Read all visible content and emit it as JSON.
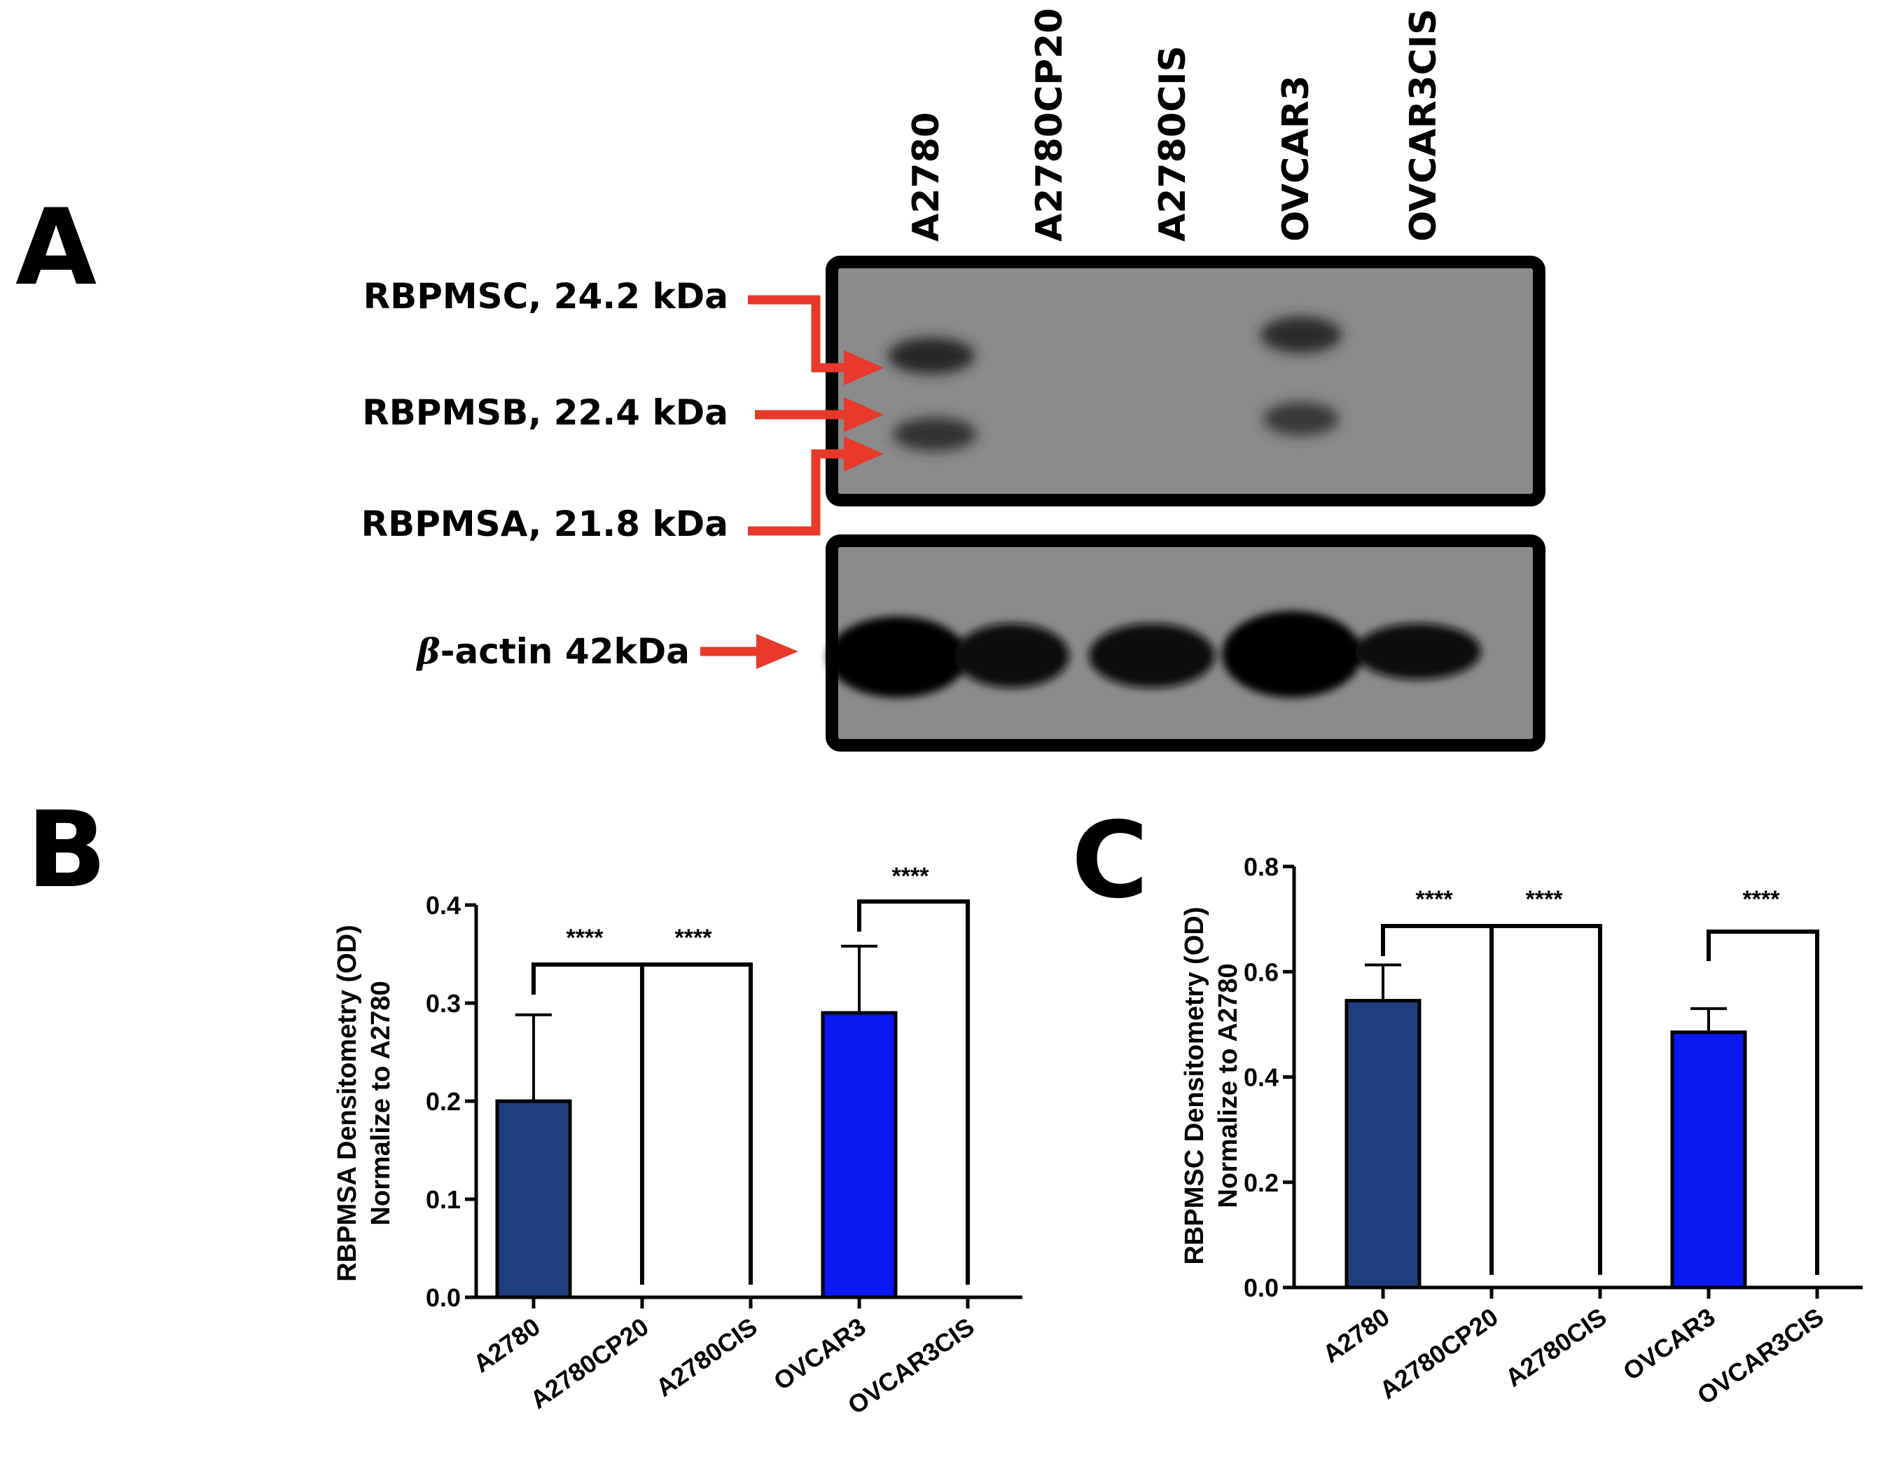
{
  "colors": {
    "arrow": "#e8392a",
    "bar_dark_blue": "#1f3f7f",
    "bar_blue": "#0a18f2",
    "blot_background": "#8a8a8a",
    "band": "#1a1a1a"
  },
  "panel_a": {
    "letter": "A",
    "lanes": [
      "A2780",
      "A2780CP20",
      "A2780CIS",
      "OVCAR3",
      "OVCAR3CIS"
    ],
    "band_labels": {
      "rbpmsc": "RBPMSC, 24.2 kDa",
      "rbpmsb": "RBPMSB, 22.4 kDa",
      "rbpmsa": "RBPMSA, 21.8 kDa",
      "actin_beta": "β",
      "actin_rest": "-actin 42kDa"
    },
    "rbpms_bands_present": [
      true,
      false,
      false,
      true,
      false
    ],
    "actin_bands_present": [
      true,
      true,
      true,
      true,
      true
    ]
  },
  "panel_b": {
    "letter": "B",
    "ylabel_line1": "RBPMSA Densitometry (OD)",
    "ylabel_line2": "Normalize to A2780",
    "significance": [
      "****",
      "****",
      "****"
    ]
  },
  "panel_c": {
    "letter": "C",
    "ylabel_line1": "RBPMSC  Densitometry (OD)",
    "ylabel_line2": "Normalize to A2780",
    "significance": [
      "****",
      "****",
      "****"
    ]
  },
  "chart_data": [
    {
      "type": "bar",
      "categories": [
        "A2780",
        "A2780CP20",
        "A2780CIS",
        "OVCAR3",
        "OVCAR3CIS"
      ],
      "values": [
        0.2,
        0,
        0,
        0.29,
        0
      ],
      "errors": [
        0.088,
        0,
        0,
        0.068,
        0
      ],
      "ylim": [
        0,
        0.4
      ],
      "yticks": [
        "0.0",
        "0.1",
        "0.2",
        "0.3",
        "0.4"
      ],
      "ylabel": "RBPMSA Densitometry (OD) Normalize to A2780",
      "bar_colors": [
        "#1f3f7f",
        "#1f3f7f",
        "#1f3f7f",
        "#0a18f2",
        "#0a18f2"
      ],
      "comparisons": [
        {
          "from": "A2780",
          "to": "A2780CP20",
          "label": "****"
        },
        {
          "from": "A2780",
          "to": "A2780CIS",
          "label": "****"
        },
        {
          "from": "OVCAR3",
          "to": "OVCAR3CIS",
          "label": "****"
        }
      ]
    },
    {
      "type": "bar",
      "categories": [
        "A2780",
        "A2780CP20",
        "A2780CIS",
        "OVCAR3",
        "OVCAR3CIS"
      ],
      "values": [
        0.545,
        0,
        0,
        0.485,
        0
      ],
      "errors": [
        0.068,
        0,
        0,
        0.045,
        0
      ],
      "ylim": [
        0,
        0.8
      ],
      "yticks": [
        "0.0",
        "0.2",
        "0.4",
        "0.6",
        "0.8"
      ],
      "ylabel": "RBPMSC  Densitometry (OD) Normalize to A2780",
      "bar_colors": [
        "#1f3f7f",
        "#1f3f7f",
        "#1f3f7f",
        "#0a18f2",
        "#0a18f2"
      ],
      "comparisons": [
        {
          "from": "A2780",
          "to": "A2780CP20",
          "label": "****"
        },
        {
          "from": "A2780",
          "to": "A2780CIS",
          "label": "****"
        },
        {
          "from": "OVCAR3",
          "to": "OVCAR3CIS",
          "label": "****"
        }
      ]
    }
  ]
}
